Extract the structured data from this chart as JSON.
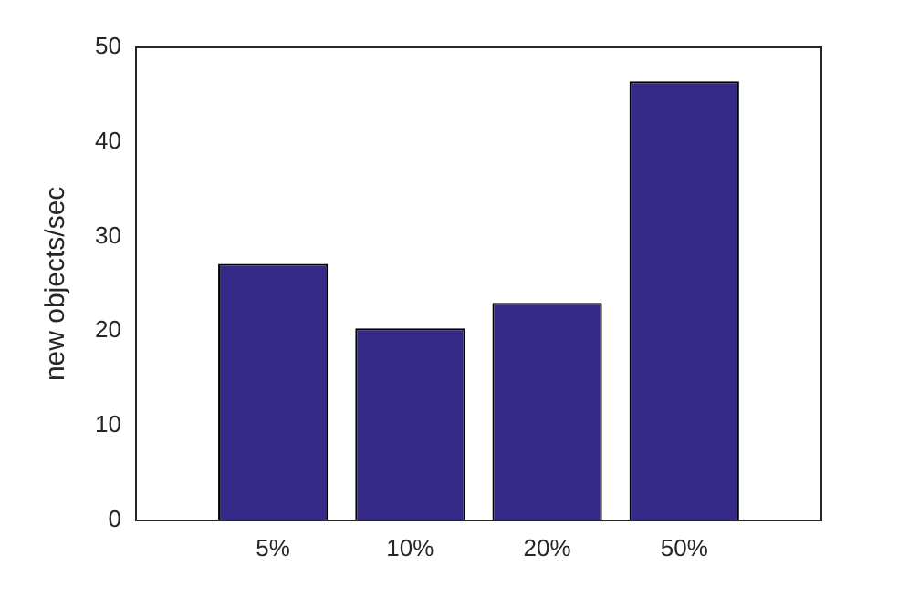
{
  "chart_data": {
    "type": "bar",
    "ylabel": "new objects/sec",
    "categories": [
      "5%",
      "10%",
      "20%",
      "50%"
    ],
    "values": [
      27.1,
      20.3,
      23.0,
      46.4
    ],
    "color": "#352a87",
    "ylim": [
      0,
      50
    ],
    "yticks": [
      0,
      10,
      20,
      30,
      40,
      50
    ],
    "grid": false,
    "legend": false
  }
}
